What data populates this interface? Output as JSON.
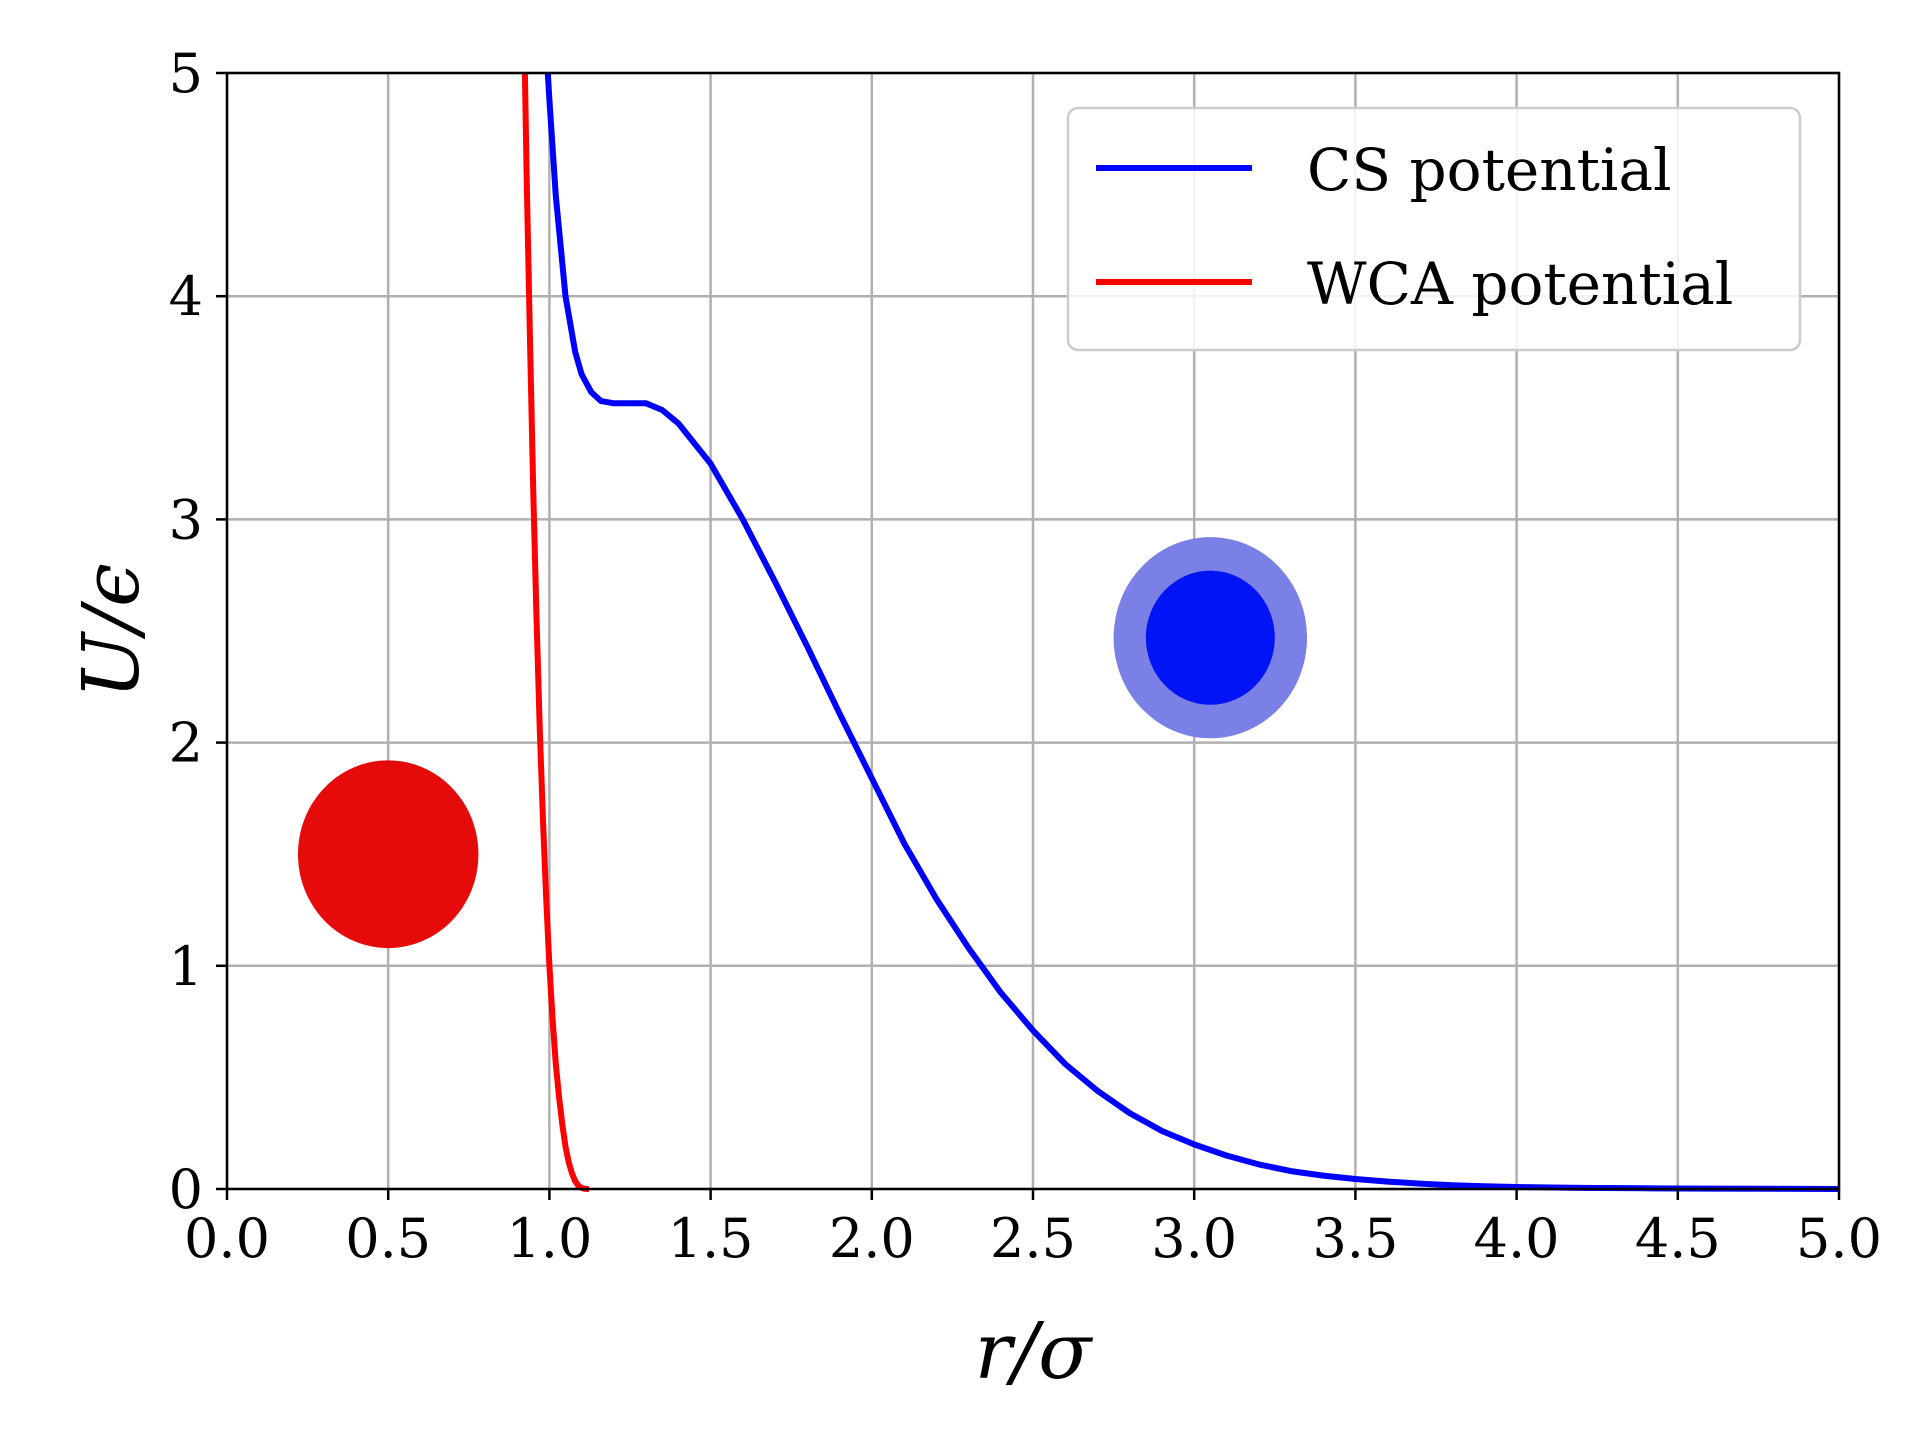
{
  "chart_data": {
    "type": "line",
    "title": "",
    "xlabel": "r/σ",
    "ylabel": "U/ϵ",
    "xlim": [
      0,
      5
    ],
    "ylim": [
      0,
      5
    ],
    "grid": true,
    "legend_position": "top-right",
    "x_ticks": [
      "0.0",
      "0.5",
      "1.0",
      "1.5",
      "2.0",
      "2.5",
      "3.0",
      "3.5",
      "4.0",
      "4.5",
      "5.0"
    ],
    "y_ticks": [
      "0",
      "1",
      "2",
      "3",
      "4",
      "5"
    ],
    "series": [
      {
        "name": "CS potential",
        "color": "#0000ff",
        "x": [
          0.995,
          1.0,
          1.02,
          1.05,
          1.08,
          1.1,
          1.13,
          1.16,
          1.2,
          1.25,
          1.3,
          1.35,
          1.4,
          1.5,
          1.6,
          1.7,
          1.8,
          1.9,
          2.0,
          2.1,
          2.2,
          2.3,
          2.4,
          2.5,
          2.6,
          2.7,
          2.8,
          2.9,
          3.0,
          3.1,
          3.2,
          3.3,
          3.4,
          3.5,
          3.6,
          3.7,
          3.8,
          3.9,
          4.0,
          4.2,
          4.4,
          4.6,
          4.8,
          5.0
        ],
        "y": [
          5.0,
          4.88,
          4.45,
          4.0,
          3.75,
          3.65,
          3.57,
          3.53,
          3.52,
          3.52,
          3.52,
          3.49,
          3.43,
          3.25,
          3.0,
          2.72,
          2.43,
          2.13,
          1.84,
          1.55,
          1.3,
          1.08,
          0.88,
          0.71,
          0.56,
          0.44,
          0.34,
          0.26,
          0.2,
          0.15,
          0.11,
          0.08,
          0.06,
          0.045,
          0.033,
          0.024,
          0.017,
          0.012,
          0.009,
          0.005,
          0.003,
          0.002,
          0.001,
          0.0
        ]
      },
      {
        "name": "WCA potential",
        "color": "#ff0000",
        "x": [
          0.924,
          0.93,
          0.94,
          0.95,
          0.96,
          0.97,
          0.98,
          0.99,
          1.0,
          1.01,
          1.02,
          1.03,
          1.04,
          1.05,
          1.06,
          1.07,
          1.08,
          1.09,
          1.1,
          1.11,
          1.12,
          1.1225
        ],
        "y": [
          5.0,
          4.5,
          3.78,
          3.12,
          2.56,
          2.07,
          1.65,
          1.3,
          1.0,
          0.76,
          0.56,
          0.41,
          0.29,
          0.19,
          0.12,
          0.07,
          0.035,
          0.015,
          0.005,
          0.001,
          0.0,
          0.0
        ]
      }
    ],
    "annotations": [
      {
        "shape": "disk",
        "color": "#e60b0b",
        "center": [
          0.5,
          1.5
        ],
        "radius_x": 0.28
      },
      {
        "shape": "disk",
        "color": "#0014f5",
        "center": [
          3.05,
          2.47
        ],
        "radius_x": 0.2
      },
      {
        "shape": "ring",
        "color": "#7a80e6",
        "center": [
          3.05,
          2.47
        ],
        "radius_x": 0.3
      }
    ]
  }
}
